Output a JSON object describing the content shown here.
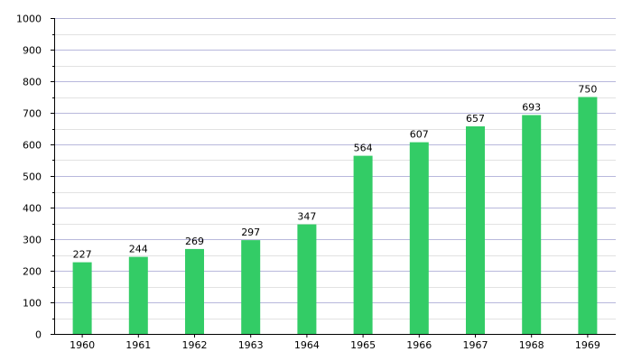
{
  "chart_data": {
    "type": "bar",
    "categories": [
      "1960",
      "1961",
      "1962",
      "1963",
      "1964",
      "1965",
      "1966",
      "1967",
      "1968",
      "1969"
    ],
    "values": [
      227,
      244,
      269,
      297,
      347,
      564,
      607,
      657,
      693,
      750
    ],
    "data_labels": [
      "227",
      "244",
      "269",
      "297",
      "347",
      "564",
      "607",
      "657",
      "693",
      "750"
    ],
    "y_ticks": [
      "0",
      "100",
      "200",
      "300",
      "400",
      "500",
      "600",
      "700",
      "800",
      "900",
      "1000"
    ],
    "ylim": [
      0,
      1000
    ],
    "y_major_step": 100,
    "y_minor_step": 50,
    "grid": true,
    "title": "",
    "xlabel": "",
    "ylabel": ""
  },
  "colors": {
    "bar": "#33cc66",
    "major_grid": "#b8b8dc",
    "minor_grid": "#e2e2e2",
    "axis": "#000000",
    "text": "#000000"
  }
}
